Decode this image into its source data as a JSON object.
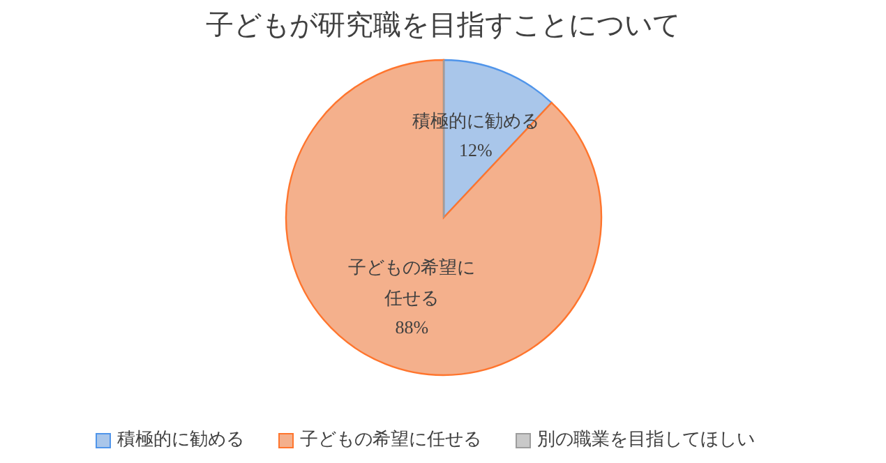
{
  "chart_data": {
    "type": "pie",
    "title": "子どもが研究職を目指すことについて",
    "categories": [
      "積極的に勧める",
      "子どもの希望に任せる",
      "別の職業を目指してほしい"
    ],
    "values": [
      12,
      88,
      0
    ],
    "colors": [
      "#a9c6ea",
      "#f4b08c",
      "#c9c9c9"
    ],
    "value_labels": [
      "12%",
      "88%",
      null
    ],
    "legend": "bottom"
  }
}
